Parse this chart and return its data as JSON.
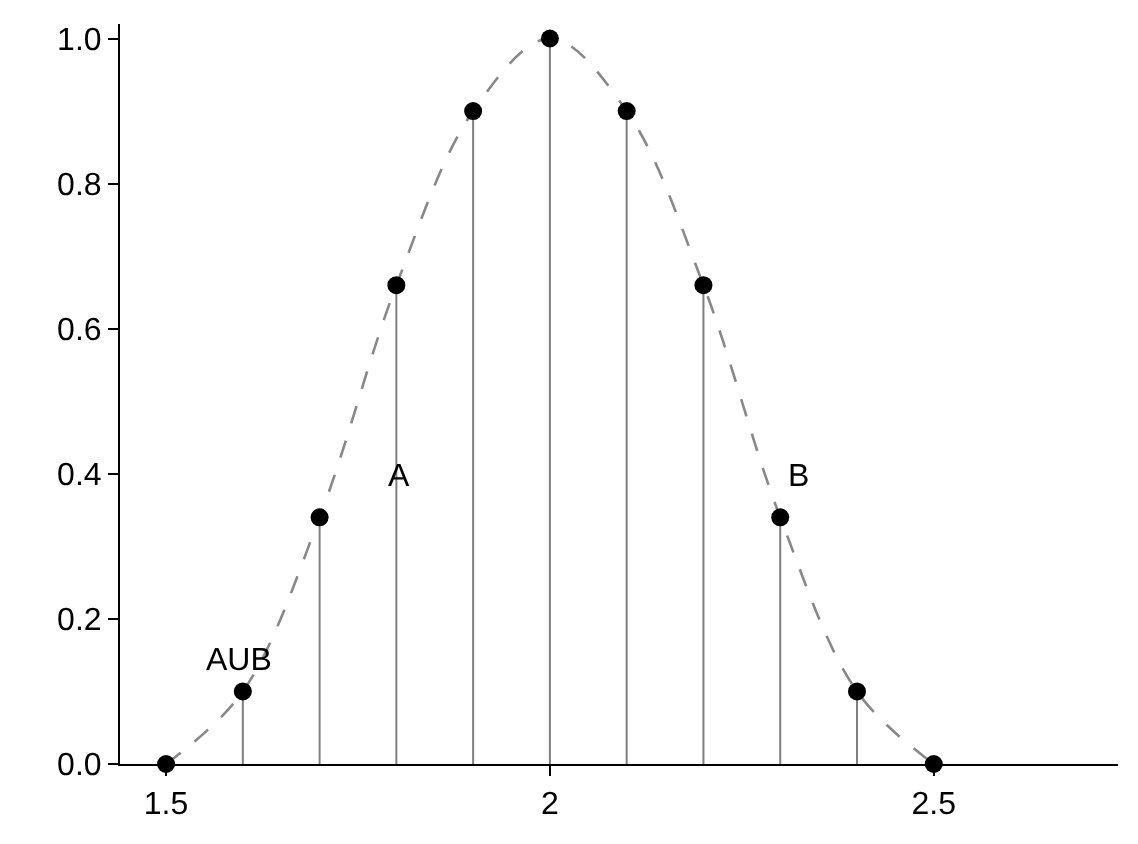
{
  "chart_data": {
    "type": "lollipop",
    "x": [
      1.5,
      1.6,
      1.7,
      1.8,
      1.9,
      2.0,
      2.1,
      2.2,
      2.3,
      2.4,
      2.5
    ],
    "series": [
      {
        "type": "line",
        "color": "#888888",
        "line_style": "dashed",
        "marker": "none",
        "values": [
          0,
          0.1,
          0.34,
          0.66,
          0.9,
          1.0,
          0.9,
          0.66,
          0.34,
          0.1,
          0
        ]
      },
      {
        "color": "#000000",
        "marker": "circle",
        "values": [
          0,
          0.1,
          0.34,
          0.66,
          0.9,
          1.0,
          0.9,
          0.66,
          0.34,
          0.1,
          0
        ]
      }
    ],
    "xlim": [
      1.44,
      2.74
    ],
    "xticks": [
      1.5,
      2,
      2.5
    ],
    "ylim": [
      0,
      1.02
    ],
    "yticks": [
      {
        "value": 0,
        "label": "0.0"
      },
      0.2,
      0.4,
      0.6,
      0.8,
      {
        "value": 1,
        "label": "1.0"
      }
    ],
    "annotations": [
      "AUB",
      "A",
      "B"
    ]
  }
}
